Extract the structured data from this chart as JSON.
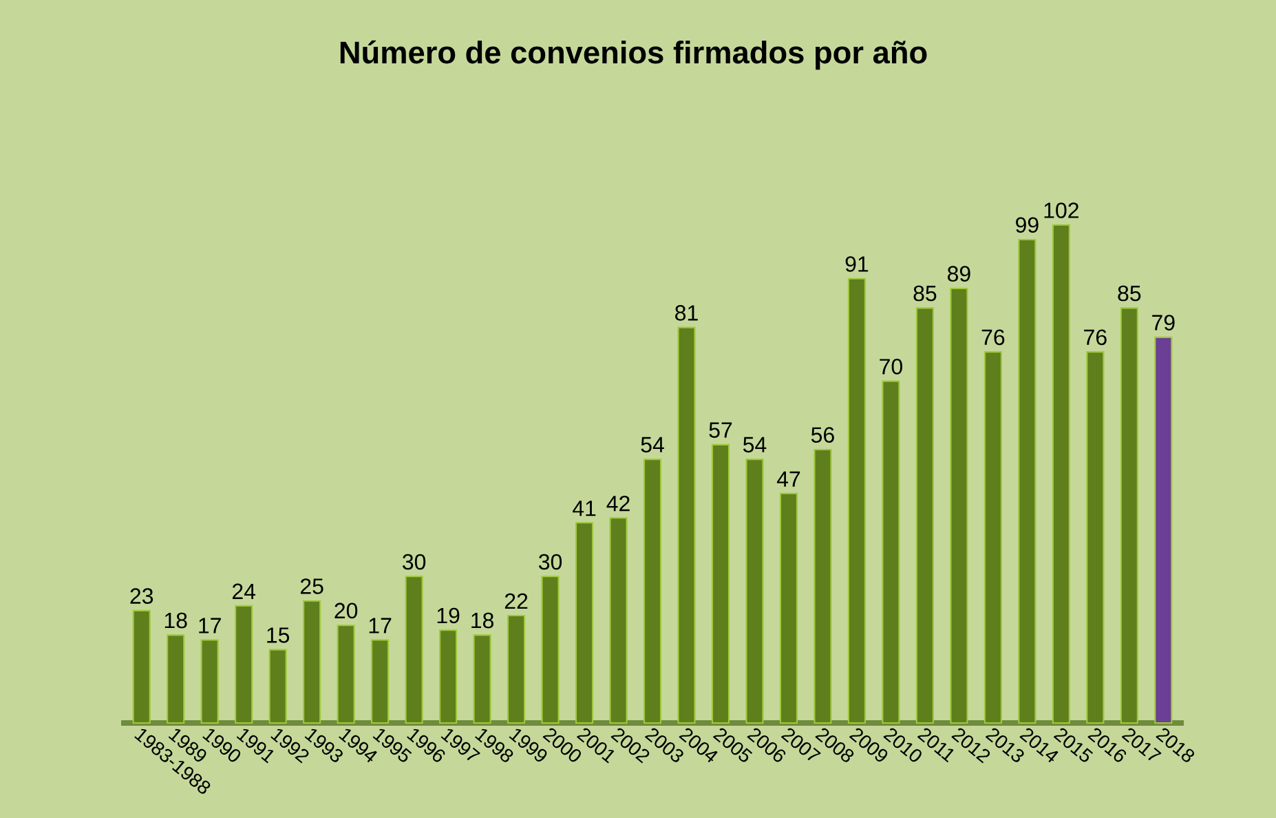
{
  "chart_data": {
    "type": "bar",
    "title": "Número de convenios firmados por año",
    "categories": [
      "1983-1988",
      "1989",
      "1990",
      "1991",
      "1992",
      "1993",
      "1994",
      "1995",
      "1996",
      "1997",
      "1998",
      "1999",
      "2000",
      "2001",
      "2002",
      "2003",
      "2004",
      "2005",
      "2006",
      "2007",
      "2008",
      "2009",
      "2010",
      "2011",
      "2012",
      "2013",
      "2014",
      "2015",
      "2016",
      "2017",
      "2018"
    ],
    "values": [
      23,
      18,
      17,
      24,
      15,
      25,
      20,
      17,
      30,
      19,
      18,
      22,
      30,
      41,
      42,
      54,
      81,
      57,
      54,
      47,
      56,
      91,
      70,
      85,
      89,
      76,
      99,
      102,
      76,
      85,
      79
    ],
    "colors": [
      "#5e7f1c",
      "#5e7f1c",
      "#5e7f1c",
      "#5e7f1c",
      "#5e7f1c",
      "#5e7f1c",
      "#5e7f1c",
      "#5e7f1c",
      "#5e7f1c",
      "#5e7f1c",
      "#5e7f1c",
      "#5e7f1c",
      "#5e7f1c",
      "#5e7f1c",
      "#5e7f1c",
      "#5e7f1c",
      "#5e7f1c",
      "#5e7f1c",
      "#5e7f1c",
      "#5e7f1c",
      "#5e7f1c",
      "#5e7f1c",
      "#5e7f1c",
      "#5e7f1c",
      "#5e7f1c",
      "#5e7f1c",
      "#5e7f1c",
      "#5e7f1c",
      "#5e7f1c",
      "#5e7f1c",
      "#6b3f94"
    ],
    "data_labels": true
  }
}
